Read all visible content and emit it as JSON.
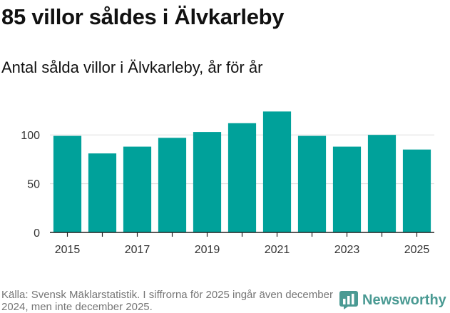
{
  "header": {
    "title": "85 villor såldes i Älvkarleby",
    "subtitle": "Antal sålda villor i Älvkarleby, år för år"
  },
  "chart_data": {
    "type": "bar",
    "categories": [
      "2015",
      "2016",
      "2017",
      "2018",
      "2019",
      "2020",
      "2021",
      "2022",
      "2023",
      "2024",
      "2025"
    ],
    "values": [
      99,
      81,
      88,
      97,
      103,
      112,
      124,
      99,
      88,
      100,
      85
    ],
    "title": "85 villor såldes i Älvkarleby",
    "subtitle": "Antal sålda villor i Älvkarleby, år för år",
    "xlabel": "",
    "ylabel": "",
    "ylim": [
      0,
      125
    ],
    "yticks": [
      0,
      50,
      100
    ],
    "xticks": [
      "2015",
      "2017",
      "2019",
      "2021",
      "2023",
      "2025"
    ],
    "grid": true,
    "legend": "none",
    "bar_color": "#00a19a"
  },
  "footer": {
    "source": "Källa: Svensk Mäklarstatistik. I siffrorna för 2025 ingår även december 2024, men inte december 2025.",
    "brand": "Newsworthy",
    "brand_color": "#4a9a93"
  }
}
